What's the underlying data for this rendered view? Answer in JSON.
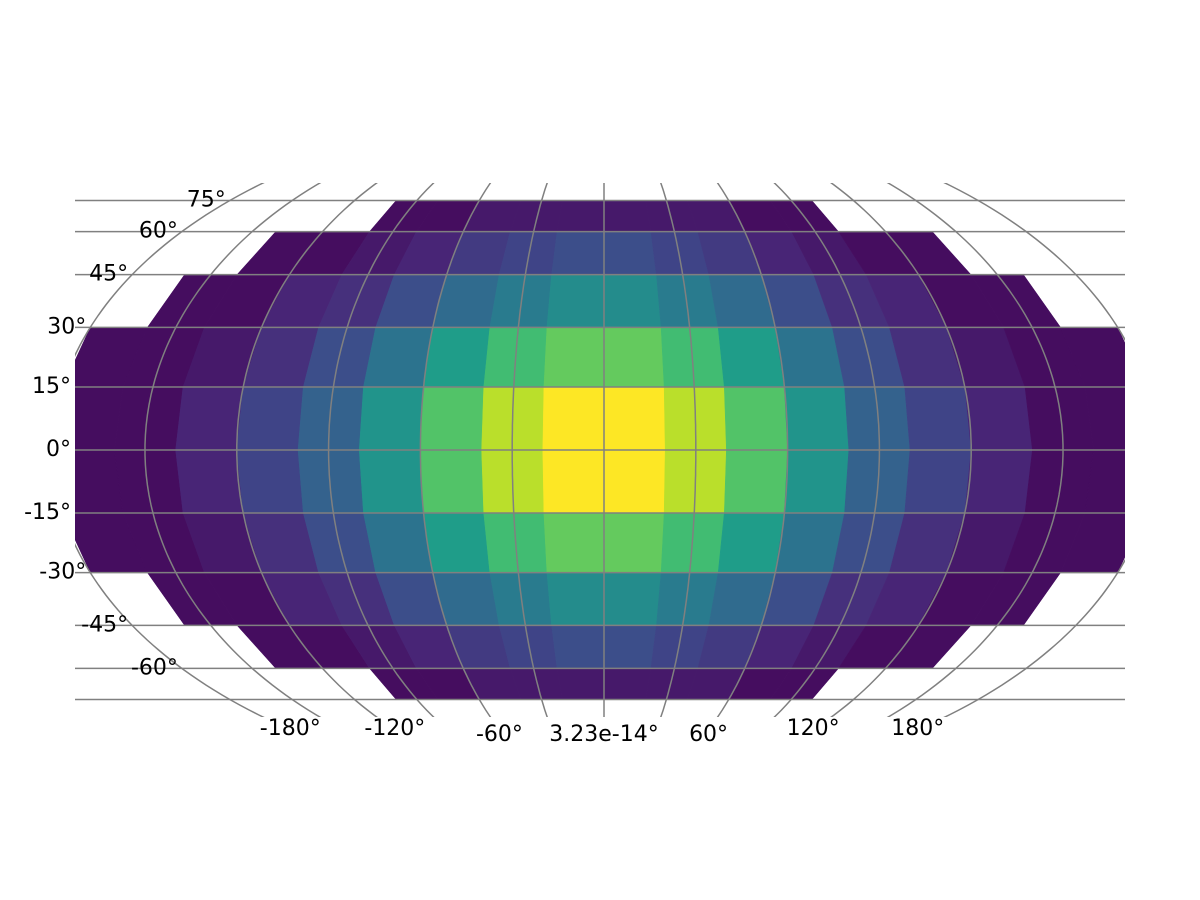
{
  "chart_data": {
    "type": "heatmap",
    "colormap": "viridis",
    "lon_bins": [
      -180,
      -160,
      -140,
      -120,
      -100,
      -80,
      -60,
      -40,
      -20,
      0,
      20,
      40,
      60,
      80,
      100,
      120,
      140,
      160,
      180
    ],
    "lat_bins": [
      -75,
      -60,
      -45,
      -30,
      -15,
      0,
      15,
      30,
      45,
      60,
      75
    ],
    "values": [
      [
        0,
        0,
        0,
        0,
        1,
        1,
        2,
        2,
        2,
        2,
        2,
        2,
        1,
        1,
        0,
        0,
        0,
        0
      ],
      [
        0,
        0,
        1,
        1,
        2,
        3,
        5,
        6,
        7,
        7,
        6,
        5,
        3,
        2,
        1,
        1,
        0,
        0
      ],
      [
        0,
        1,
        1,
        3,
        4,
        7,
        10,
        12,
        14,
        14,
        12,
        10,
        7,
        4,
        3,
        1,
        1,
        0
      ],
      [
        1,
        1,
        2,
        4,
        7,
        11,
        16,
        20,
        22,
        22,
        20,
        16,
        11,
        7,
        4,
        2,
        1,
        1
      ],
      [
        1,
        1,
        3,
        6,
        9,
        15,
        21,
        26,
        29,
        29,
        26,
        21,
        15,
        9,
        6,
        3,
        1,
        1
      ],
      [
        1,
        1,
        3,
        6,
        9,
        15,
        21,
        26,
        29,
        29,
        26,
        21,
        15,
        9,
        6,
        3,
        1,
        1
      ],
      [
        1,
        1,
        2,
        4,
        7,
        11,
        16,
        20,
        22,
        22,
        20,
        16,
        11,
        7,
        4,
        2,
        1,
        1
      ],
      [
        0,
        1,
        1,
        3,
        4,
        7,
        10,
        12,
        14,
        14,
        12,
        10,
        7,
        4,
        3,
        1,
        1,
        0
      ],
      [
        0,
        0,
        1,
        1,
        2,
        3,
        5,
        6,
        7,
        7,
        6,
        5,
        3,
        2,
        1,
        1,
        0,
        0
      ],
      [
        0,
        0,
        0,
        0,
        1,
        1,
        2,
        2,
        2,
        2,
        2,
        2,
        1,
        1,
        0,
        0,
        0,
        0
      ]
    ],
    "xticks": [
      {
        "value": -180,
        "label": "-180°"
      },
      {
        "value": -120,
        "label": "-120°"
      },
      {
        "value": -60,
        "label": "-60°"
      },
      {
        "value": 3.23e-14,
        "label": "3.23e-14°"
      },
      {
        "value": 60,
        "label": "60°"
      },
      {
        "value": 120,
        "label": "120°"
      },
      {
        "value": 180,
        "label": "180°"
      }
    ],
    "yticks": [
      {
        "value": 75,
        "label": "75°"
      },
      {
        "value": 60,
        "label": "60°"
      },
      {
        "value": 45,
        "label": "45°"
      },
      {
        "value": 30,
        "label": "30°"
      },
      {
        "value": 15,
        "label": "15°"
      },
      {
        "value": 0,
        "label": "0°"
      },
      {
        "value": -15,
        "label": "-15°"
      },
      {
        "value": -30,
        "label": "-30°"
      },
      {
        "value": -45,
        "label": "-45°"
      },
      {
        "value": -60,
        "label": "-60°"
      }
    ],
    "xgrid": [
      -180,
      -150,
      -120,
      -90,
      -60,
      -30,
      0,
      30,
      60,
      90,
      120,
      150,
      180
    ],
    "ygrid": [
      -75,
      -60,
      -45,
      -30,
      -15,
      0,
      15,
      30,
      45,
      60,
      75
    ],
    "grid": true
  }
}
